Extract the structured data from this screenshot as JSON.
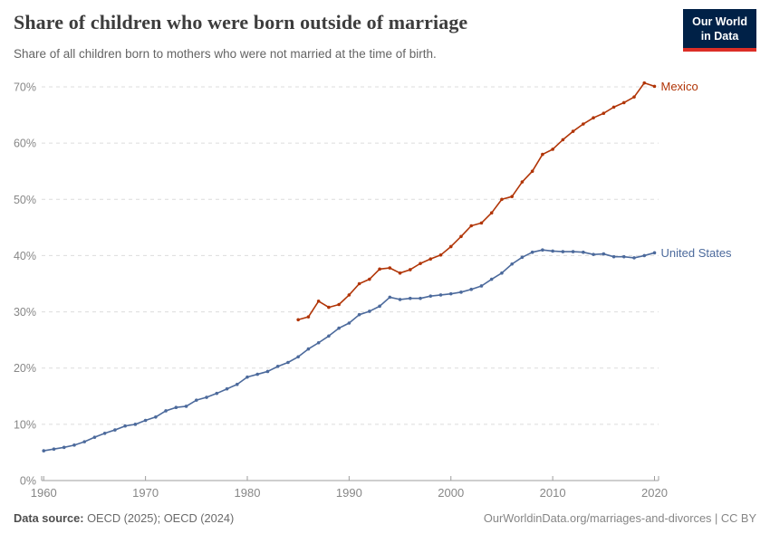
{
  "header": {
    "title": "Share of children who were born outside of marriage",
    "subtitle": "Share of all children born to mothers who were not married at the time of birth.",
    "logo_line1": "Our World",
    "logo_line2": "in Data"
  },
  "footer": {
    "source_label": "Data source:",
    "source_value": " OECD (2025); OECD (2024)",
    "link": "OurWorldinData.org/marriages-and-divorces | CC BY"
  },
  "colors": {
    "mexico_line": "#b13507",
    "united_states_line": "#4c6a9c",
    "logo_bg": "#002147",
    "logo_underline": "#dc2e26",
    "gridline": "#dcdcdc",
    "axis": "#9e9e9e"
  },
  "chart_data": {
    "type": "line",
    "title": "Share of children who were born outside of marriage",
    "xlabel": "",
    "ylabel": "",
    "xlim": [
      1959.8,
      2020.4
    ],
    "ylim": [
      0,
      70
    ],
    "grid": "horizontal-dashed",
    "legend_position": "end-of-line-labels",
    "y_ticks": [
      0,
      10,
      20,
      30,
      40,
      50,
      60,
      70
    ],
    "y_tick_labels": [
      "0%",
      "10%",
      "20%",
      "30%",
      "40%",
      "50%",
      "60%",
      "70%"
    ],
    "x_ticks": [
      1960,
      1970,
      1980,
      1990,
      2000,
      2010,
      2020
    ],
    "x_tick_labels": [
      "1960",
      "1970",
      "1980",
      "1990",
      "2000",
      "2010",
      "2020"
    ],
    "series": [
      {
        "name": "United States",
        "color": "#4c6a9c",
        "x": [
          1960,
          1961,
          1962,
          1963,
          1964,
          1965,
          1966,
          1967,
          1968,
          1969,
          1970,
          1971,
          1972,
          1973,
          1974,
          1975,
          1976,
          1977,
          1978,
          1979,
          1980,
          1981,
          1982,
          1983,
          1984,
          1985,
          1986,
          1987,
          1988,
          1989,
          1990,
          1991,
          1992,
          1993,
          1994,
          1995,
          1996,
          1997,
          1998,
          1999,
          2000,
          2001,
          2002,
          2003,
          2004,
          2005,
          2006,
          2007,
          2008,
          2009,
          2010,
          2011,
          2012,
          2013,
          2014,
          2015,
          2016,
          2017,
          2018,
          2019,
          2020
        ],
        "y": [
          5.3,
          5.6,
          5.9,
          6.3,
          6.9,
          7.7,
          8.4,
          9.0,
          9.7,
          10.0,
          10.7,
          11.3,
          12.4,
          13.0,
          13.2,
          14.3,
          14.8,
          15.5,
          16.3,
          17.1,
          18.4,
          18.9,
          19.4,
          20.3,
          21.0,
          22.0,
          23.4,
          24.5,
          25.7,
          27.1,
          28.0,
          29.5,
          30.1,
          31.0,
          32.6,
          32.2,
          32.4,
          32.4,
          32.8,
          33.0,
          33.2,
          33.5,
          34.0,
          34.6,
          35.8,
          36.9,
          38.5,
          39.7,
          40.6,
          41.0,
          40.8,
          40.7,
          40.7,
          40.6,
          40.2,
          40.3,
          39.8,
          39.8,
          39.6,
          40.0,
          40.5
        ]
      },
      {
        "name": "Mexico",
        "color": "#b13507",
        "x": [
          1985,
          1986,
          1987,
          1988,
          1989,
          1990,
          1991,
          1992,
          1993,
          1994,
          1995,
          1996,
          1997,
          1998,
          1999,
          2000,
          2001,
          2002,
          2003,
          2004,
          2005,
          2006,
          2007,
          2008,
          2009,
          2010,
          2011,
          2012,
          2013,
          2014,
          2015,
          2016,
          2017,
          2018,
          2019,
          2020
        ],
        "y": [
          28.6,
          29.1,
          31.9,
          30.8,
          31.3,
          33.0,
          35.0,
          35.8,
          37.6,
          37.8,
          36.9,
          37.5,
          38.6,
          39.4,
          40.1,
          41.6,
          43.4,
          45.3,
          45.8,
          47.6,
          50.0,
          50.5,
          53.1,
          55.0,
          58.0,
          58.9,
          60.6,
          62.1,
          63.4,
          64.5,
          65.3,
          66.4,
          67.2,
          68.2,
          70.7,
          70.1
        ]
      }
    ]
  }
}
